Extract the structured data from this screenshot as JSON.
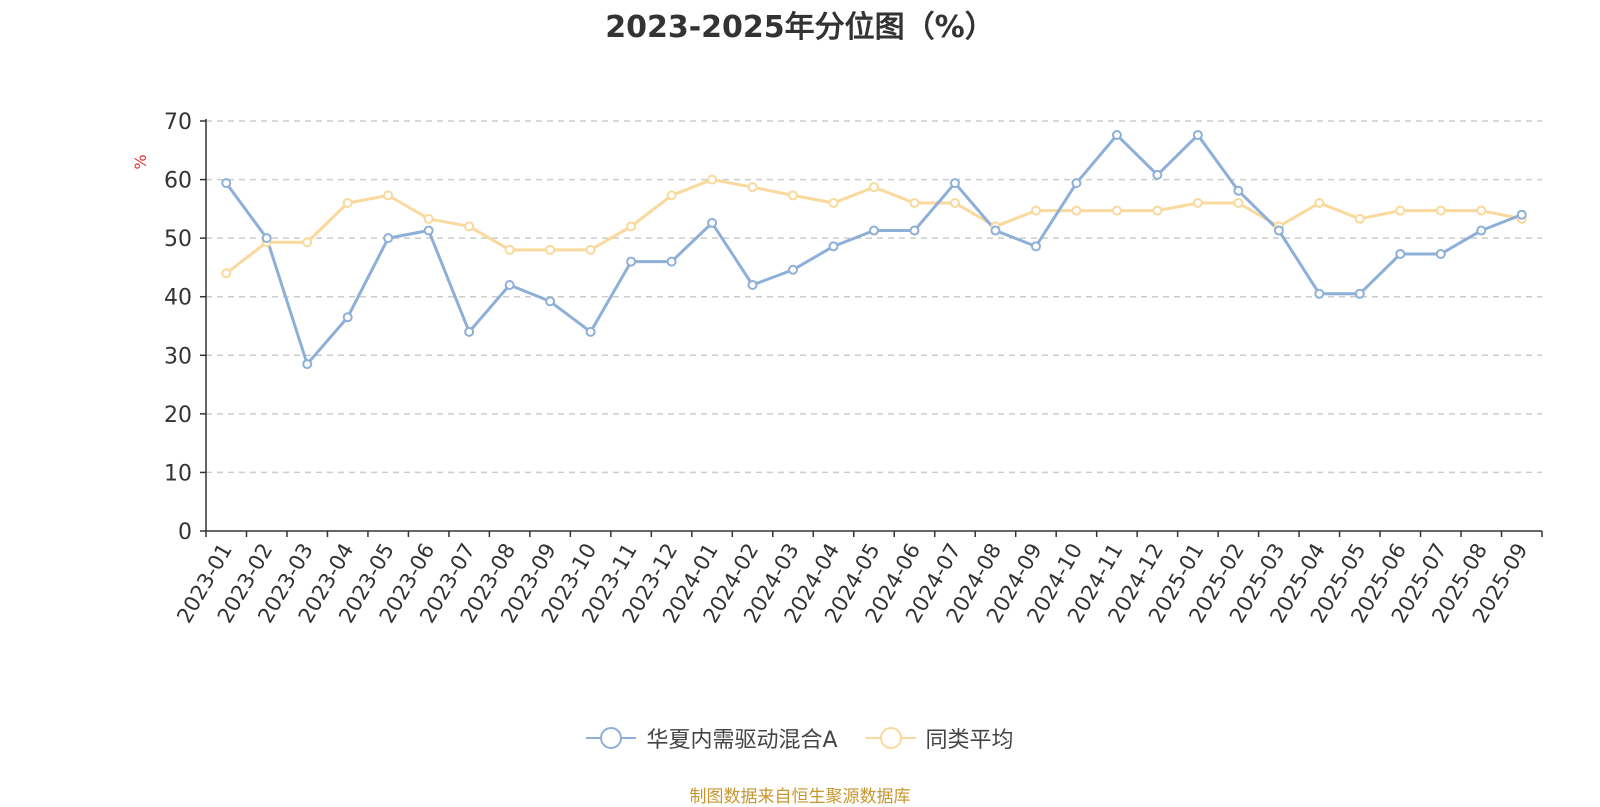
{
  "chart_data": {
    "type": "line",
    "title": "2023-2025年分位图（%）",
    "ylabel": "%",
    "xlabel": "",
    "ylim": [
      0,
      70
    ],
    "yticks": [
      0,
      10,
      20,
      30,
      40,
      50,
      60,
      70
    ],
    "grid": true,
    "legend_position": "bottom-center",
    "categories": [
      "2023-01",
      "2023-02",
      "2023-03",
      "2023-04",
      "2023-05",
      "2023-06",
      "2023-07",
      "2023-08",
      "2023-09",
      "2023-10",
      "2023-11",
      "2023-12",
      "2024-01",
      "2024-02",
      "2024-03",
      "2024-04",
      "2024-05",
      "2024-06",
      "2024-07",
      "2024-08",
      "2024-09",
      "2024-10",
      "2024-11",
      "2024-12",
      "2025-01",
      "2025-02",
      "2025-03",
      "2025-04",
      "2025-05",
      "2025-06",
      "2025-07",
      "2025-08",
      "2025-09"
    ],
    "series": [
      {
        "name": "华夏内需驱动混合A",
        "color": "#8eafd8",
        "values": [
          59.4,
          50,
          28.5,
          36.5,
          50,
          51.3,
          34,
          42,
          39.2,
          34,
          46,
          46,
          52.6,
          42,
          44.6,
          48.6,
          51.3,
          51.3,
          59.4,
          51.3,
          48.6,
          59.4,
          67.6,
          60.8,
          67.6,
          58.1,
          51.3,
          40.5,
          40.5,
          47.3,
          47.3,
          51.3,
          54
        ]
      },
      {
        "name": "同类平均",
        "color": "#f9d99c",
        "values": [
          44,
          49.3,
          49.3,
          56,
          57.3,
          53.3,
          52,
          48,
          48,
          48,
          52,
          57.3,
          60,
          58.7,
          57.3,
          56,
          58.7,
          56,
          56,
          52,
          54.7,
          54.7,
          54.7,
          54.7,
          56,
          56,
          52,
          56,
          53.3,
          54.7,
          54.7,
          54.7,
          53.3
        ]
      }
    ]
  },
  "source_note": "制图数据来自恒生聚源数据库"
}
